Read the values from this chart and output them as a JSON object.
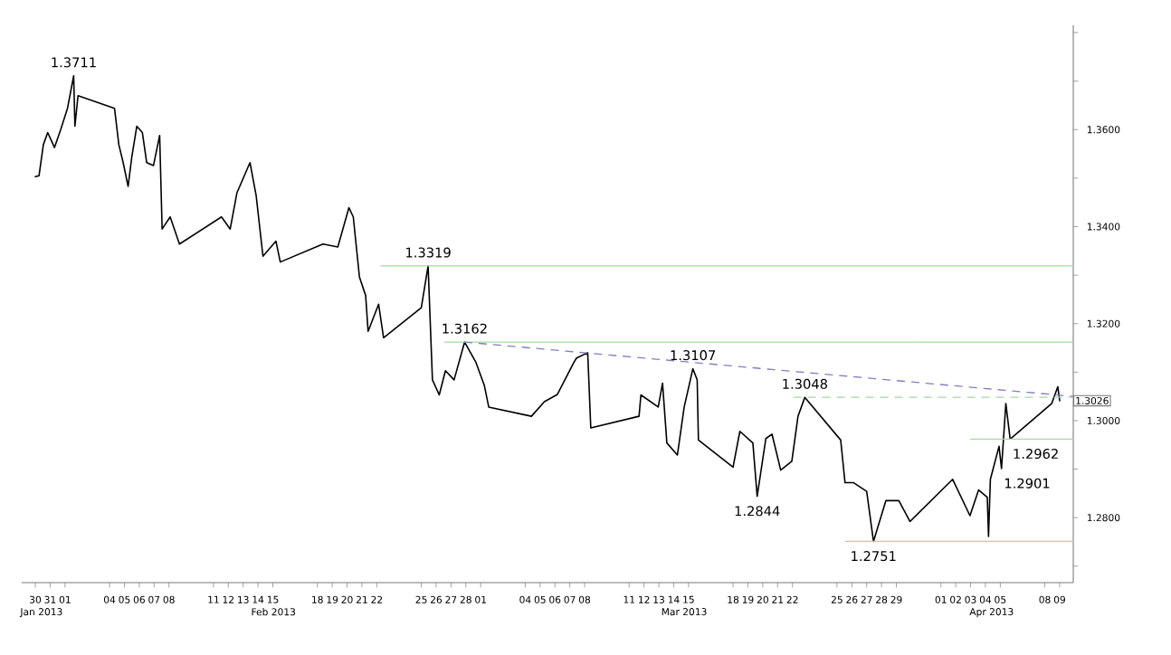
{
  "chart_data": {
    "type": "line",
    "x": [
      "2013-01-30T00:00",
      "2013-01-30T06:00",
      "2013-01-30T13:00",
      "2013-01-30T20:00",
      "2013-01-31T07:00",
      "2013-01-31T17:00",
      "2013-02-01T04:00",
      "2013-02-01T14:00",
      "2013-02-01T16:00",
      "2013-02-01T21:00",
      "2013-02-04T08:00",
      "2013-02-04T15:00",
      "2013-02-04T22:00",
      "2013-02-05T06:00",
      "2013-02-05T12:00",
      "2013-02-05T20:00",
      "2013-02-06T05:00",
      "2013-02-06T12:00",
      "2013-02-06T23:00",
      "2013-02-07T09:00",
      "2013-02-07T13:00",
      "2013-02-08T02:00",
      "2013-02-08T17:00",
      "2013-02-11T13:00",
      "2013-02-12T03:00",
      "2013-02-12T14:00",
      "2013-02-13T11:00",
      "2013-02-13T21:00",
      "2013-02-14T08:00",
      "2013-02-15T05:00",
      "2013-02-15T12:00",
      "2013-02-18T09:00",
      "2013-02-19T09:00",
      "2013-02-20T03:00",
      "2013-02-20T10:00",
      "2013-02-20T20:00",
      "2013-02-21T06:00",
      "2013-02-21T10:00",
      "2013-02-22T03:00",
      "2013-02-22T11:00",
      "2013-02-25T00:00",
      "2013-02-25T11:00",
      "2013-02-25T18:00",
      "2013-02-26T05:00",
      "2013-02-26T15:00",
      "2013-02-27T05:00",
      "2013-02-27T22:00",
      "2013-02-28T16:00",
      "2013-03-01T06:00",
      "2013-03-01T13:00",
      "2013-03-04T10:00",
      "2013-03-05T07:00",
      "2013-03-06T04:00",
      "2013-03-07T07:00",
      "2013-03-07T11:00",
      "2013-03-08T05:00",
      "2013-03-08T10:00",
      "2013-03-11T16:00",
      "2013-03-11T19:00",
      "2013-03-12T23:00",
      "2013-03-13T06:00",
      "2013-03-13T13:00",
      "2013-03-14T06:00",
      "2013-03-14T17:00",
      "2013-03-15T07:00",
      "2013-03-15T14:00",
      "2013-03-15T16:00",
      "2013-03-18T00:00",
      "2013-03-18T11:00",
      "2013-03-19T08:00",
      "2013-03-19T15:00",
      "2013-03-20T05:00",
      "2013-03-20T15:00",
      "2013-03-21T05:00",
      "2013-03-21T23:00",
      "2013-03-22T09:00",
      "2013-03-22T20:00",
      "2013-03-25T06:00",
      "2013-03-25T13:00",
      "2013-03-26T03:00",
      "2013-03-27T00:00",
      "2013-03-27T11:00",
      "2013-03-28T07:00",
      "2013-03-29T04:00",
      "2013-03-29T22:00",
      "2013-04-01T19:00",
      "2013-04-02T23:00",
      "2013-04-03T13:00",
      "2013-04-04T03:00",
      "2013-04-04T05:00",
      "2013-04-04T08:00",
      "2013-04-04T22:00",
      "2013-04-05T02:00",
      "2013-04-05T09:00",
      "2013-04-05T16:00",
      "2013-04-08T11:00",
      "2013-04-08T21:00",
      "2013-04-09T00:00"
    ],
    "series": [
      {
        "color": "#000000",
        "values": [
          1.3503,
          1.3505,
          1.3569,
          1.3594,
          1.3563,
          1.36,
          1.3644,
          1.3711,
          1.3607,
          1.367,
          1.3644,
          1.3569,
          1.3532,
          1.3483,
          1.3544,
          1.3607,
          1.3594,
          1.3532,
          1.3526,
          1.3588,
          1.3395,
          1.342,
          1.3364,
          1.342,
          1.3395,
          1.347,
          1.3532,
          1.3464,
          1.3339,
          1.337,
          1.3327,
          1.3364,
          1.3358,
          1.3439,
          1.342,
          1.3296,
          1.3258,
          1.3184,
          1.324,
          1.3171,
          1.3233,
          1.3319,
          1.3084,
          1.3053,
          1.3103,
          1.3084,
          1.3162,
          1.3121,
          1.3072,
          1.3028,
          1.3009,
          1.3039,
          1.3054,
          1.3121,
          1.3129,
          1.314,
          1.2985,
          1.3009,
          1.3053,
          1.3028,
          1.3077,
          1.2954,
          1.2929,
          1.3028,
          1.3107,
          1.3084,
          1.296,
          1.2904,
          1.2978,
          1.2954,
          1.2844,
          1.2963,
          1.2972,
          1.2898,
          1.2916,
          1.3009,
          1.3048,
          1.296,
          1.2872,
          1.2872,
          1.2854,
          1.2751,
          1.2835,
          1.2835,
          1.2792,
          1.2879,
          1.2804,
          1.2857,
          1.2842,
          1.2761,
          1.2879,
          1.2947,
          1.2901,
          1.3035,
          1.2962,
          1.3035,
          1.307,
          1.3041
        ]
      },
      {
        "type": "line",
        "x": [
          "2013-02-22T07:00",
          "2013-04-09T22:00"
        ],
        "values": [
          1.3319,
          1.3319
        ],
        "color": "#a6d8a6"
      },
      {
        "type": "line",
        "x": [
          "2013-02-26T14:00",
          "2013-04-09T22:00"
        ],
        "values": [
          1.3162,
          1.3162
        ],
        "color": "#a6d8a6"
      },
      {
        "type": "line",
        "x": [
          "2013-04-03T00:00",
          "2013-04-09T22:00"
        ],
        "values": [
          1.2962,
          1.2962
        ],
        "color": "#a6d8a6"
      },
      {
        "type": "line",
        "x": [
          "2013-03-25T14:00",
          "2013-04-09T22:00"
        ],
        "values": [
          1.2751,
          1.2751
        ],
        "color": "#a6d8a6"
      },
      {
        "type": "line",
        "x": [
          "2013-03-22T02:00",
          "2013-04-09T22:00"
        ],
        "values": [
          1.3048,
          1.3048
        ],
        "color": "#a6d8a6",
        "line_style": "dashed"
      },
      {
        "type": "line",
        "x": [
          "2013-02-27T22:00",
          "2013-04-09T22:00"
        ],
        "values": [
          1.3162,
          1.305
        ],
        "color": "#8080c0",
        "line_style": "dashed"
      }
    ],
    "xlim": [
      "2013-01-29T02:00",
      "2013-04-09T22:00"
    ],
    "ylim": [
      1.2666,
      1.3815
    ],
    "xticks": [
      {
        "value": "2013-01-30",
        "label": "30"
      },
      {
        "value": "2013-01-31",
        "label": "31"
      },
      {
        "value": "2013-02-01",
        "label": "01"
      },
      {
        "value": "2013-02-04",
        "label": "04"
      },
      {
        "value": "2013-02-05",
        "label": "05"
      },
      {
        "value": "2013-02-06",
        "label": "06"
      },
      {
        "value": "2013-02-07",
        "label": "07"
      },
      {
        "value": "2013-02-08",
        "label": "08"
      },
      {
        "value": "2013-02-11",
        "label": "11"
      },
      {
        "value": "2013-02-12",
        "label": "12"
      },
      {
        "value": "2013-02-13",
        "label": "13"
      },
      {
        "value": "2013-02-14",
        "label": "14"
      },
      {
        "value": "2013-02-15",
        "label": "15"
      },
      {
        "value": "2013-02-18",
        "label": "18"
      },
      {
        "value": "2013-02-19",
        "label": "19"
      },
      {
        "value": "2013-02-20",
        "label": "20"
      },
      {
        "value": "2013-02-21",
        "label": "21"
      },
      {
        "value": "2013-02-22",
        "label": "22"
      },
      {
        "value": "2013-02-25",
        "label": "25"
      },
      {
        "value": "2013-02-26",
        "label": "26"
      },
      {
        "value": "2013-02-27",
        "label": "27"
      },
      {
        "value": "2013-02-28",
        "label": "28"
      },
      {
        "value": "2013-03-01",
        "label": "01"
      },
      {
        "value": "2013-03-04",
        "label": "04"
      },
      {
        "value": "2013-03-05",
        "label": "05"
      },
      {
        "value": "2013-03-06",
        "label": "06"
      },
      {
        "value": "2013-03-07",
        "label": "07"
      },
      {
        "value": "2013-03-08",
        "label": "08"
      },
      {
        "value": "2013-03-11",
        "label": "11"
      },
      {
        "value": "2013-03-12",
        "label": "12"
      },
      {
        "value": "2013-03-13",
        "label": "13"
      },
      {
        "value": "2013-03-14",
        "label": "14"
      },
      {
        "value": "2013-03-15",
        "label": "15"
      },
      {
        "value": "2013-03-18",
        "label": "18"
      },
      {
        "value": "2013-03-19",
        "label": "19"
      },
      {
        "value": "2013-03-20",
        "label": "20"
      },
      {
        "value": "2013-03-21",
        "label": "21"
      },
      {
        "value": "2013-03-22",
        "label": "22"
      },
      {
        "value": "2013-03-25",
        "label": "25"
      },
      {
        "value": "2013-03-26",
        "label": "26"
      },
      {
        "value": "2013-03-27",
        "label": "27"
      },
      {
        "value": "2013-03-28",
        "label": "28"
      },
      {
        "value": "2013-03-29",
        "label": "29"
      },
      {
        "value": "2013-04-01",
        "label": "01"
      },
      {
        "value": "2013-04-02",
        "label": "02"
      },
      {
        "value": "2013-04-03",
        "label": "03"
      },
      {
        "value": "2013-04-04",
        "label": "04"
      },
      {
        "value": "2013-04-05",
        "label": "05"
      },
      {
        "value": "2013-04-08",
        "label": "08"
      },
      {
        "value": "2013-04-09",
        "label": "09"
      }
    ],
    "x2lim": [
      "2013-01-29T02:00",
      "2013-04-09T22:00"
    ],
    "x2ticks": [
      {
        "value": "2013-01-30T10:00",
        "label": "Jan 2013"
      },
      {
        "value": "2013-02-15T01:00",
        "label": "Feb 2013"
      },
      {
        "value": "2013-03-14T17:00",
        "label": "Mar 2013"
      },
      {
        "value": "2013-04-04T10:00",
        "label": "Apr 2013"
      }
    ],
    "yticks": [
      {
        "value": 1.27,
        "label": null
      },
      {
        "value": 1.28,
        "label": "1.2800"
      },
      {
        "value": 1.29,
        "label": null
      },
      {
        "value": 1.3,
        "label": "1.3000"
      },
      {
        "value": 1.31,
        "label": null
      },
      {
        "value": 1.32,
        "label": "1.3200"
      },
      {
        "value": 1.33,
        "label": null
      },
      {
        "value": 1.34,
        "label": "1.3400"
      },
      {
        "value": 1.35,
        "label": null
      },
      {
        "value": 1.36,
        "label": "1.3600"
      },
      {
        "value": 1.37,
        "label": null
      },
      {
        "value": 1.38,
        "label": null
      }
    ],
    "annotations": [
      {
        "text": "1.3711",
        "x": "2013-02-01T14:00",
        "y": 1.3711
      },
      {
        "text": "1.3319",
        "x": "2013-02-25T11:00",
        "y": 1.3319
      },
      {
        "text": "1.3162",
        "x": "2013-02-27T22:00",
        "y": 1.3162
      },
      {
        "text": "1.3107",
        "x": "2013-03-15T07:00",
        "y": 1.3107
      },
      {
        "text": "1.3048",
        "x": "2013-03-22T20:00",
        "y": 1.3048
      },
      {
        "text": "1.2844",
        "x": "2013-03-19T15:00",
        "y": 1.2844
      },
      {
        "text": "1.2751",
        "x": "2013-03-27T11:00",
        "y": 1.2751
      },
      {
        "text": "1.2901",
        "x": "2013-04-05T02:00",
        "y": 1.2901
      },
      {
        "text": "1.2962",
        "x": "2013-04-05T16:00",
        "y": 1.2962
      },
      "1.3026"
    ]
  }
}
